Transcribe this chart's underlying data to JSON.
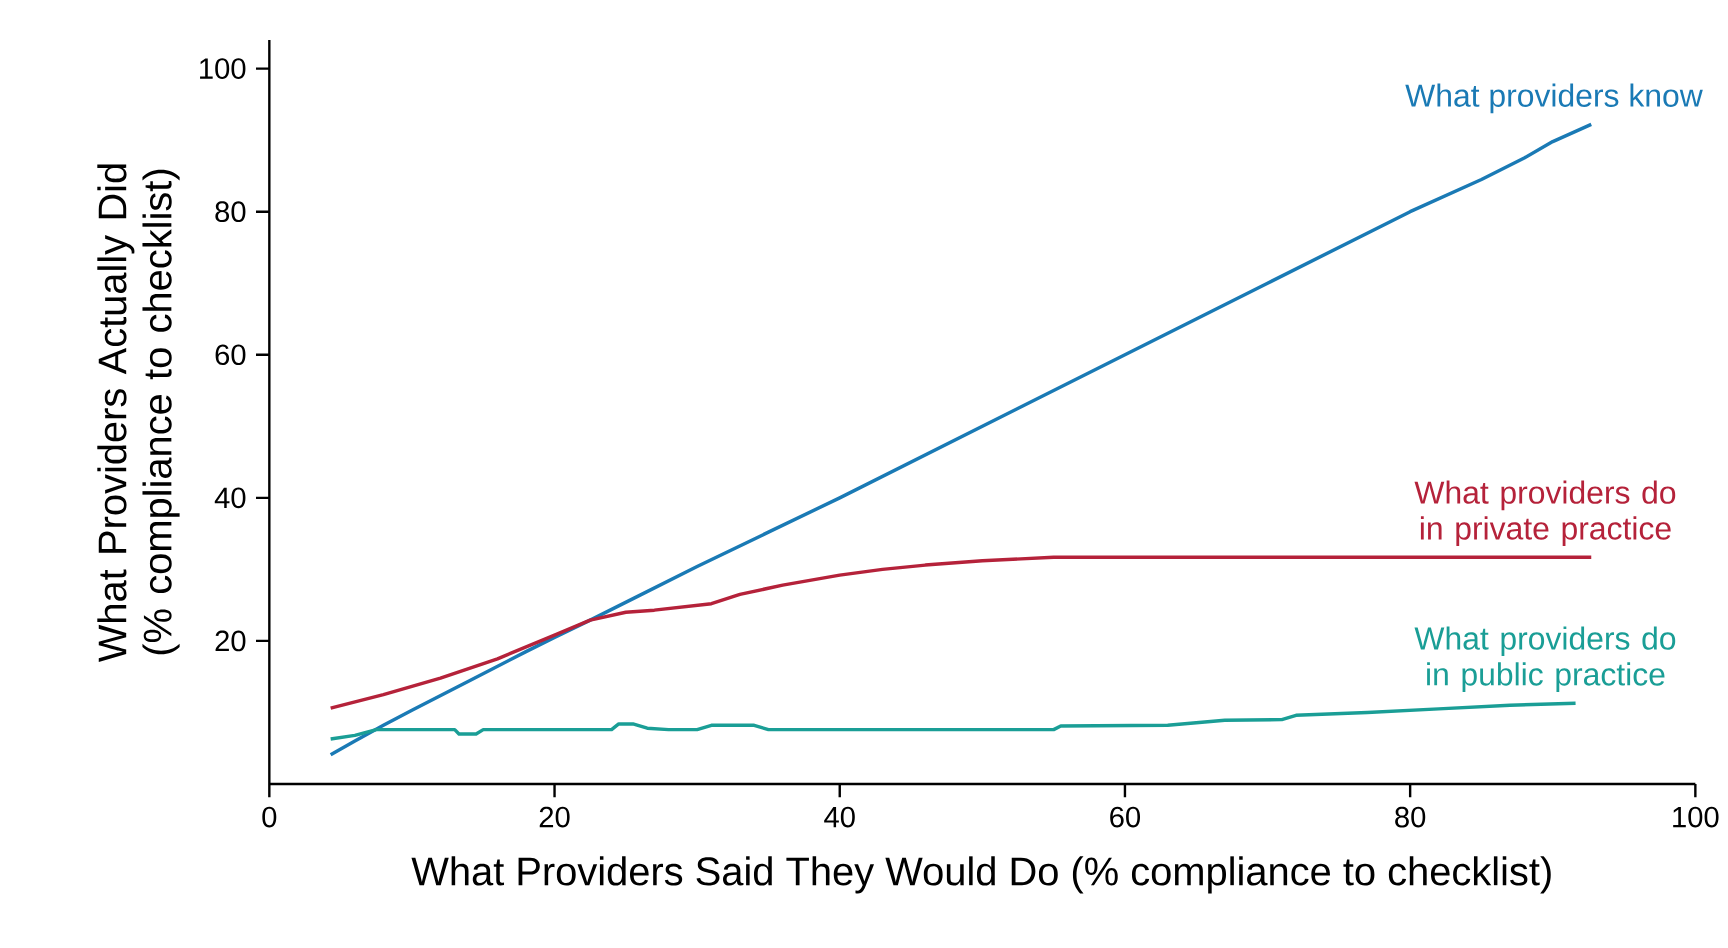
{
  "chart_data": {
    "type": "line",
    "xlabel": "What Providers Said They Would Do (% compliance to checklist)",
    "ylabel": "What Providers Actually Did (% compliance to checklist)",
    "xlim": [
      0,
      100
    ],
    "ylim": [
      0,
      104
    ],
    "xticks": [
      0,
      20,
      40,
      60,
      80,
      100
    ],
    "yticks": [
      20,
      40,
      60,
      80,
      100
    ],
    "grid": false,
    "legend": false,
    "marker": "none",
    "line_style": "solid",
    "series": [
      {
        "name": "What providers know",
        "color": "#1a7ab5",
        "x": [
          4.3,
          6,
          8,
          10,
          14,
          18,
          20,
          22.5,
          26,
          30,
          35,
          40,
          45,
          50,
          55,
          60,
          65,
          70,
          75,
          80,
          85,
          88,
          90,
          92.7
        ],
        "values": [
          4.1,
          6.0,
          8.2,
          10.3,
          14.4,
          18.5,
          20.5,
          22.9,
          26.4,
          30.4,
          35.2,
          40.0,
          45.0,
          50.0,
          55.0,
          60.0,
          65.0,
          70.0,
          75.0,
          80.0,
          84.5,
          87.5,
          89.8,
          92.2
        ]
      },
      {
        "name": "What providers do in private practice",
        "color": "#b5223a",
        "x": [
          4.3,
          8,
          12,
          16,
          20,
          22.5,
          25,
          27,
          31,
          33,
          36,
          40,
          43,
          46,
          50,
          55,
          60,
          70,
          80,
          92.7
        ],
        "values": [
          10.6,
          12.5,
          14.8,
          17.5,
          20.8,
          22.9,
          24.0,
          24.3,
          25.2,
          26.5,
          27.8,
          29.2,
          30.0,
          30.6,
          31.2,
          31.7,
          31.7,
          31.7,
          31.7,
          31.7
        ]
      },
      {
        "name": "What providers do in public practice",
        "color": "#1a9e96",
        "x": [
          4.3,
          6,
          7.5,
          13,
          13.3,
          14.5,
          15,
          24,
          24.5,
          25.5,
          26.5,
          28,
          30,
          31,
          34,
          35,
          55,
          55.5,
          63,
          67,
          71,
          72,
          77,
          82,
          87,
          91.6
        ],
        "values": [
          6.3,
          6.8,
          7.6,
          7.6,
          7.0,
          7.0,
          7.6,
          7.6,
          8.4,
          8.4,
          7.8,
          7.6,
          7.6,
          8.2,
          8.2,
          7.6,
          7.6,
          8.1,
          8.2,
          8.9,
          9.0,
          9.6,
          10.0,
          10.5,
          11.0,
          11.3
        ]
      }
    ]
  }
}
